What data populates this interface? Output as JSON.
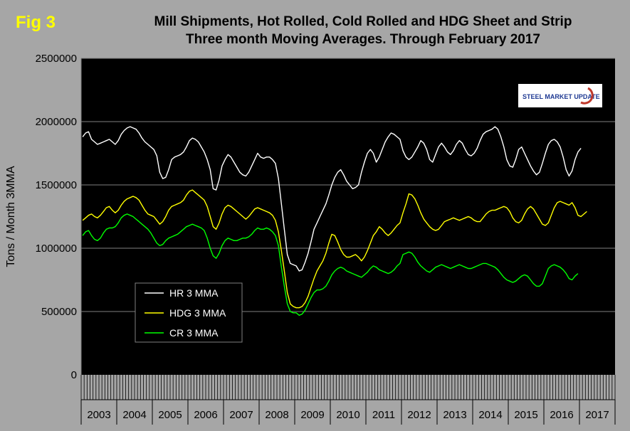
{
  "fig_label": "Fig 3",
  "title_line1": "Mill Shipments, Hot Rolled, Cold Rolled and HDG Sheet and Strip",
  "title_line2": "Three month Moving Averages. Through February 2017",
  "logo_text": "STEEL MARKET UPDATE",
  "colors": {
    "plot_bg": "#000000",
    "page_bg": "#a6a6a6",
    "hr": "#ffffff",
    "hdg": "#ffff00",
    "cr": "#00ff00",
    "grid": "#808080",
    "logo_red": "#c0392b",
    "logo_blue": "#1f3a93"
  },
  "chart_data": {
    "type": "line",
    "title": "Mill Shipments, Hot Rolled, Cold Rolled and HDG Sheet and Strip Three month Moving Averages. Through February 2017",
    "ylabel": "Tons / Month 3MMA",
    "ylim": [
      0,
      2500000
    ],
    "yticks": [
      "0",
      "500000",
      "1000000",
      "1500000",
      "2000000",
      "2500000"
    ],
    "ytick_values": [
      0,
      500000,
      1000000,
      1500000,
      2000000,
      2500000
    ],
    "years": [
      "2003",
      "2004",
      "2005",
      "2006",
      "2007",
      "2008",
      "2009",
      "2010",
      "2011",
      "2012",
      "2013",
      "2014",
      "2015",
      "2016",
      "2017"
    ],
    "x_start": "2003-01",
    "x_end": "2017-02",
    "grid": true,
    "legend_position": "left-bottom",
    "series": [
      {
        "name": "HR 3 MMA",
        "color": "#ffffff",
        "values": [
          1880000,
          1910000,
          1920000,
          1860000,
          1840000,
          1820000,
          1830000,
          1840000,
          1850000,
          1860000,
          1840000,
          1820000,
          1850000,
          1900000,
          1930000,
          1950000,
          1960000,
          1950000,
          1940000,
          1910000,
          1870000,
          1840000,
          1820000,
          1800000,
          1780000,
          1730000,
          1600000,
          1550000,
          1560000,
          1620000,
          1700000,
          1720000,
          1730000,
          1740000,
          1760000,
          1800000,
          1850000,
          1870000,
          1860000,
          1840000,
          1800000,
          1760000,
          1700000,
          1620000,
          1470000,
          1460000,
          1540000,
          1650000,
          1700000,
          1740000,
          1720000,
          1680000,
          1640000,
          1600000,
          1580000,
          1570000,
          1600000,
          1650000,
          1700000,
          1750000,
          1720000,
          1710000,
          1720000,
          1720000,
          1700000,
          1670000,
          1550000,
          1350000,
          1150000,
          950000,
          880000,
          870000,
          860000,
          820000,
          830000,
          890000,
          960000,
          1050000,
          1150000,
          1200000,
          1250000,
          1300000,
          1350000,
          1420000,
          1500000,
          1560000,
          1600000,
          1620000,
          1580000,
          1530000,
          1500000,
          1470000,
          1480000,
          1500000,
          1600000,
          1680000,
          1750000,
          1780000,
          1750000,
          1680000,
          1720000,
          1780000,
          1840000,
          1880000,
          1910000,
          1900000,
          1880000,
          1860000,
          1770000,
          1720000,
          1700000,
          1720000,
          1760000,
          1800000,
          1850000,
          1830000,
          1780000,
          1700000,
          1680000,
          1740000,
          1800000,
          1830000,
          1800000,
          1760000,
          1740000,
          1770000,
          1820000,
          1850000,
          1830000,
          1780000,
          1740000,
          1730000,
          1750000,
          1790000,
          1850000,
          1900000,
          1920000,
          1930000,
          1940000,
          1960000,
          1940000,
          1880000,
          1800000,
          1700000,
          1650000,
          1640000,
          1700000,
          1780000,
          1800000,
          1750000,
          1700000,
          1650000,
          1610000,
          1580000,
          1600000,
          1670000,
          1750000,
          1820000,
          1850000,
          1860000,
          1840000,
          1800000,
          1720000,
          1620000,
          1570000,
          1610000,
          1700000,
          1760000,
          1790000
        ]
      },
      {
        "name": "HDG 3 MMA",
        "color": "#ffff00",
        "values": [
          1220000,
          1240000,
          1260000,
          1270000,
          1250000,
          1240000,
          1260000,
          1290000,
          1320000,
          1330000,
          1300000,
          1280000,
          1300000,
          1340000,
          1370000,
          1390000,
          1400000,
          1410000,
          1400000,
          1380000,
          1340000,
          1300000,
          1270000,
          1260000,
          1250000,
          1220000,
          1190000,
          1210000,
          1250000,
          1300000,
          1330000,
          1340000,
          1350000,
          1360000,
          1380000,
          1420000,
          1450000,
          1460000,
          1440000,
          1420000,
          1400000,
          1380000,
          1330000,
          1250000,
          1170000,
          1150000,
          1200000,
          1270000,
          1320000,
          1340000,
          1330000,
          1310000,
          1290000,
          1270000,
          1250000,
          1230000,
          1250000,
          1280000,
          1310000,
          1320000,
          1310000,
          1300000,
          1290000,
          1280000,
          1260000,
          1220000,
          1130000,
          980000,
          820000,
          650000,
          560000,
          540000,
          530000,
          530000,
          540000,
          570000,
          620000,
          690000,
          760000,
          820000,
          860000,
          900000,
          960000,
          1040000,
          1110000,
          1100000,
          1050000,
          990000,
          950000,
          930000,
          930000,
          940000,
          950000,
          930000,
          900000,
          930000,
          980000,
          1040000,
          1100000,
          1130000,
          1170000,
          1150000,
          1120000,
          1100000,
          1120000,
          1150000,
          1180000,
          1200000,
          1280000,
          1350000,
          1430000,
          1420000,
          1390000,
          1340000,
          1280000,
          1230000,
          1200000,
          1170000,
          1150000,
          1140000,
          1150000,
          1180000,
          1210000,
          1220000,
          1230000,
          1240000,
          1230000,
          1220000,
          1230000,
          1240000,
          1250000,
          1240000,
          1220000,
          1210000,
          1210000,
          1240000,
          1270000,
          1290000,
          1300000,
          1300000,
          1310000,
          1320000,
          1330000,
          1320000,
          1290000,
          1240000,
          1210000,
          1200000,
          1220000,
          1270000,
          1310000,
          1330000,
          1310000,
          1270000,
          1230000,
          1190000,
          1180000,
          1200000,
          1260000,
          1320000,
          1360000,
          1370000,
          1360000,
          1350000,
          1340000,
          1360000,
          1320000,
          1260000,
          1250000,
          1270000,
          1290000
        ]
      },
      {
        "name": "CR 3 MMA",
        "color": "#00ff00",
        "values": [
          1100000,
          1130000,
          1140000,
          1100000,
          1070000,
          1060000,
          1080000,
          1120000,
          1150000,
          1160000,
          1160000,
          1170000,
          1200000,
          1240000,
          1260000,
          1270000,
          1260000,
          1250000,
          1230000,
          1210000,
          1190000,
          1170000,
          1150000,
          1120000,
          1080000,
          1040000,
          1020000,
          1030000,
          1060000,
          1080000,
          1090000,
          1100000,
          1110000,
          1130000,
          1150000,
          1170000,
          1180000,
          1190000,
          1180000,
          1170000,
          1160000,
          1140000,
          1080000,
          1000000,
          940000,
          920000,
          960000,
          1020000,
          1060000,
          1080000,
          1070000,
          1060000,
          1060000,
          1070000,
          1080000,
          1080000,
          1090000,
          1110000,
          1140000,
          1160000,
          1150000,
          1150000,
          1160000,
          1150000,
          1130000,
          1100000,
          1020000,
          850000,
          700000,
          560000,
          500000,
          490000,
          490000,
          470000,
          480000,
          510000,
          560000,
          610000,
          650000,
          670000,
          670000,
          680000,
          700000,
          740000,
          790000,
          820000,
          840000,
          850000,
          840000,
          820000,
          810000,
          800000,
          790000,
          780000,
          770000,
          790000,
          810000,
          840000,
          860000,
          850000,
          830000,
          820000,
          810000,
          800000,
          810000,
          830000,
          860000,
          880000,
          950000,
          960000,
          970000,
          960000,
          930000,
          890000,
          860000,
          840000,
          820000,
          810000,
          830000,
          850000,
          860000,
          870000,
          860000,
          850000,
          840000,
          850000,
          860000,
          870000,
          860000,
          850000,
          840000,
          840000,
          850000,
          860000,
          870000,
          880000,
          880000,
          870000,
          860000,
          850000,
          830000,
          800000,
          770000,
          750000,
          740000,
          730000,
          740000,
          760000,
          780000,
          790000,
          780000,
          750000,
          720000,
          700000,
          700000,
          720000,
          780000,
          840000,
          860000,
          870000,
          860000,
          850000,
          830000,
          800000,
          760000,
          750000,
          780000,
          800000
        ]
      }
    ]
  }
}
